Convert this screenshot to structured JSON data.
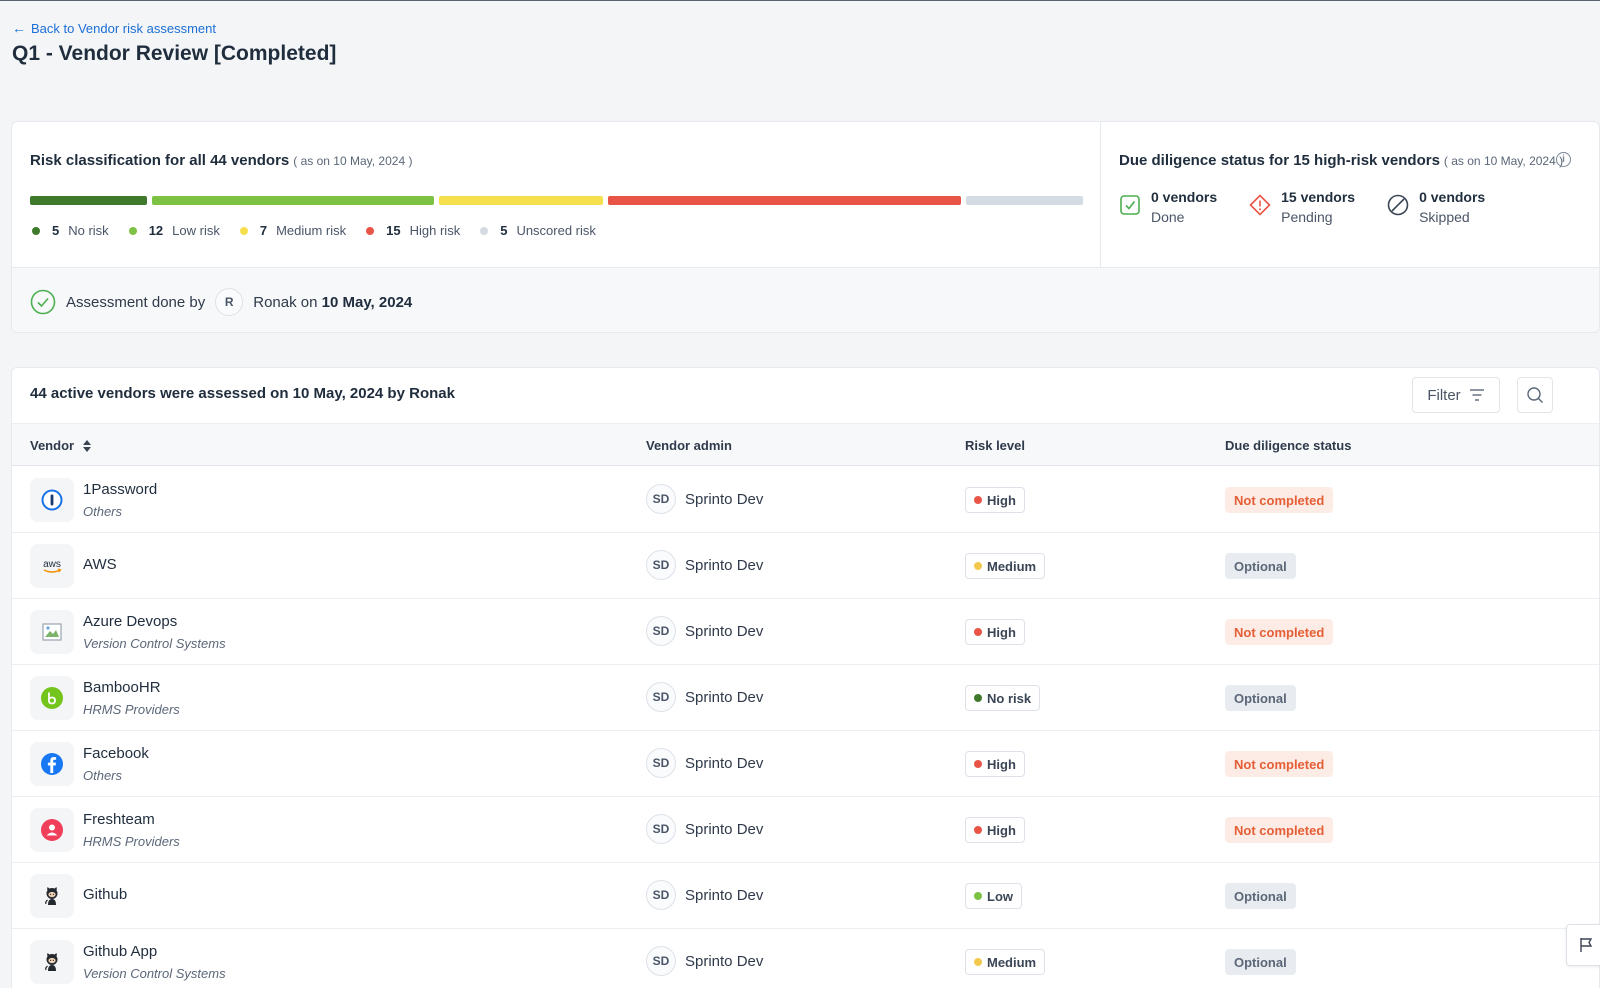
{
  "nav": {
    "back_label": "Back to Vendor risk assessment"
  },
  "page": {
    "title": "Q1 - Vendor Review [Completed]"
  },
  "risk_summary": {
    "title": "Risk classification for all 44 vendors",
    "as_of": "( as on 10 May, 2024 )",
    "segments": [
      {
        "key": "no",
        "count": 5,
        "label": "No risk",
        "color": "#3f7a2c"
      },
      {
        "key": "low",
        "count": 12,
        "label": "Low risk",
        "color": "#7dc243"
      },
      {
        "key": "medium",
        "count": 7,
        "label": "Medium risk",
        "color": "#f5df4d"
      },
      {
        "key": "high",
        "count": 15,
        "label": "High risk",
        "color": "#e85547"
      },
      {
        "key": "unscored",
        "count": 5,
        "label": "Unscored risk",
        "color": "#d5dbe2"
      }
    ]
  },
  "due_diligence": {
    "title": "Due diligence status for 15 high-risk vendors",
    "as_of": "( as on 10 May, 2024 )",
    "stats": [
      {
        "count": "0 vendors",
        "label": "Done",
        "icon": "check-square-icon"
      },
      {
        "count": "15 vendors",
        "label": "Pending",
        "icon": "warning-diamond-icon"
      },
      {
        "count": "0 vendors",
        "label": "Skipped",
        "icon": "skip-circle-icon"
      }
    ]
  },
  "assessment": {
    "prefix": "Assessment done by",
    "avatar_initial": "R",
    "user": "Ronak",
    "on": "on",
    "date": "10 May, 2024"
  },
  "table": {
    "title": "44 active vendors were assessed on 10 May, 2024 by Ronak",
    "filter_label": "Filter",
    "columns": {
      "vendor": "Vendor",
      "admin": "Vendor admin",
      "risk": "Risk level",
      "dd": "Due diligence status"
    },
    "rows": [
      {
        "name": "1Password",
        "category": "Others",
        "logo": "onepassword-logo-icon",
        "admin_initials": "SD",
        "admin": "Sprinto Dev",
        "risk": "High",
        "risk_color": "#e85547",
        "dd": "Not completed",
        "dd_type": "nc"
      },
      {
        "name": "AWS",
        "category": "",
        "logo": "aws-logo-icon",
        "admin_initials": "SD",
        "admin": "Sprinto Dev",
        "risk": "Medium",
        "risk_color": "#f2c94c",
        "dd": "Optional",
        "dd_type": "opt"
      },
      {
        "name": "Azure Devops",
        "category": "Version Control Systems",
        "logo": "broken-image-icon",
        "admin_initials": "SD",
        "admin": "Sprinto Dev",
        "risk": "High",
        "risk_color": "#e85547",
        "dd": "Not completed",
        "dd_type": "nc"
      },
      {
        "name": "BambooHR",
        "category": "HRMS Providers",
        "logo": "bamboohr-logo-icon",
        "admin_initials": "SD",
        "admin": "Sprinto Dev",
        "risk": "No risk",
        "risk_color": "#3f7a2c",
        "dd": "Optional",
        "dd_type": "opt"
      },
      {
        "name": "Facebook",
        "category": "Others",
        "logo": "facebook-logo-icon",
        "admin_initials": "SD",
        "admin": "Sprinto Dev",
        "risk": "High",
        "risk_color": "#e85547",
        "dd": "Not completed",
        "dd_type": "nc"
      },
      {
        "name": "Freshteam",
        "category": "HRMS Providers",
        "logo": "freshteam-logo-icon",
        "admin_initials": "SD",
        "admin": "Sprinto Dev",
        "risk": "High",
        "risk_color": "#e85547",
        "dd": "Not completed",
        "dd_type": "nc"
      },
      {
        "name": "Github",
        "category": "",
        "logo": "github-logo-icon",
        "admin_initials": "SD",
        "admin": "Sprinto Dev",
        "risk": "Low",
        "risk_color": "#7dc243",
        "dd": "Optional",
        "dd_type": "opt"
      },
      {
        "name": "Github App",
        "category": "Version Control Systems",
        "logo": "github-logo-icon",
        "admin_initials": "SD",
        "admin": "Sprinto Dev",
        "risk": "Medium",
        "risk_color": "#f2c94c",
        "dd": "Optional",
        "dd_type": "opt"
      }
    ]
  }
}
